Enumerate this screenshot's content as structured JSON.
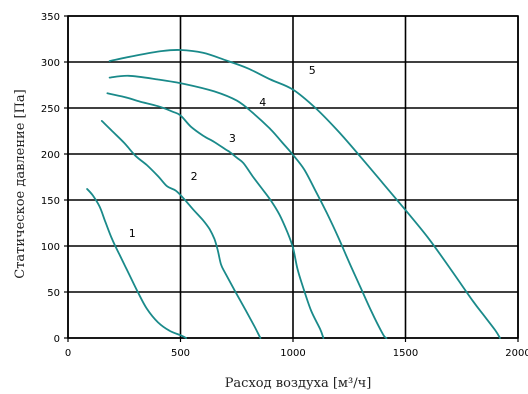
{
  "chart_data": {
    "type": "line",
    "title": "",
    "xlabel": "Расход воздуха [м³/ч]",
    "ylabel": "Статическое давление [Па]",
    "xlim": [
      0,
      2000
    ],
    "ylim": [
      0,
      350
    ],
    "xticks": [
      0,
      500,
      1000,
      1500,
      2000
    ],
    "yticks": [
      0,
      50,
      100,
      150,
      200,
      250,
      300,
      350
    ],
    "grid": true,
    "line_color": "#1a8a8a",
    "grid_color": "#000000",
    "series": [
      {
        "name": "1",
        "label_at": [
          270,
          110
        ],
        "points": [
          [
            85,
            162
          ],
          [
            110,
            155
          ],
          [
            140,
            143
          ],
          [
            165,
            127
          ],
          [
            195,
            108
          ],
          [
            230,
            90
          ],
          [
            270,
            70
          ],
          [
            310,
            50
          ],
          [
            350,
            32
          ],
          [
            400,
            17
          ],
          [
            450,
            8
          ],
          [
            500,
            3
          ],
          [
            525,
            0
          ]
        ]
      },
      {
        "name": "2",
        "label_at": [
          545,
          172
        ],
        "points": [
          [
            150,
            236
          ],
          [
            200,
            224
          ],
          [
            250,
            212
          ],
          [
            300,
            198
          ],
          [
            350,
            188
          ],
          [
            400,
            176
          ],
          [
            440,
            165
          ],
          [
            480,
            160
          ],
          [
            520,
            150
          ],
          [
            555,
            140
          ],
          [
            600,
            128
          ],
          [
            630,
            118
          ],
          [
            650,
            108
          ],
          [
            665,
            96
          ],
          [
            680,
            80
          ],
          [
            700,
            70
          ],
          [
            740,
            52
          ],
          [
            790,
            30
          ],
          [
            830,
            12
          ],
          [
            855,
            0
          ]
        ]
      },
      {
        "name": "3",
        "label_at": [
          715,
          213
        ],
        "points": [
          [
            175,
            266
          ],
          [
            250,
            262
          ],
          [
            320,
            257
          ],
          [
            400,
            252
          ],
          [
            465,
            246
          ],
          [
            500,
            242
          ],
          [
            545,
            230
          ],
          [
            600,
            220
          ],
          [
            650,
            213
          ],
          [
            700,
            205
          ],
          [
            720,
            202
          ],
          [
            750,
            196
          ],
          [
            780,
            190
          ],
          [
            820,
            176
          ],
          [
            860,
            163
          ],
          [
            900,
            150
          ],
          [
            940,
            134
          ],
          [
            975,
            115
          ],
          [
            1000,
            98
          ],
          [
            1020,
            75
          ],
          [
            1045,
            55
          ],
          [
            1080,
            30
          ],
          [
            1120,
            10
          ],
          [
            1135,
            0
          ]
        ]
      },
      {
        "name": "4",
        "label_at": [
          850,
          252
        ],
        "points": [
          [
            185,
            283
          ],
          [
            270,
            285
          ],
          [
            400,
            281
          ],
          [
            520,
            276
          ],
          [
            650,
            268
          ],
          [
            750,
            258
          ],
          [
            820,
            245
          ],
          [
            900,
            227
          ],
          [
            950,
            213
          ],
          [
            1000,
            199
          ],
          [
            1050,
            183
          ],
          [
            1100,
            160
          ],
          [
            1150,
            136
          ],
          [
            1200,
            110
          ],
          [
            1250,
            82
          ],
          [
            1300,
            55
          ],
          [
            1350,
            28
          ],
          [
            1400,
            4
          ],
          [
            1415,
            0
          ]
        ]
      },
      {
        "name": "5",
        "label_at": [
          1070,
          287
        ],
        "points": [
          [
            185,
            301
          ],
          [
            300,
            307
          ],
          [
            420,
            312
          ],
          [
            500,
            313
          ],
          [
            600,
            310
          ],
          [
            700,
            302
          ],
          [
            800,
            293
          ],
          [
            900,
            281
          ],
          [
            1000,
            270
          ],
          [
            1100,
            250
          ],
          [
            1200,
            225
          ],
          [
            1300,
            197
          ],
          [
            1400,
            168
          ],
          [
            1500,
            139
          ],
          [
            1600,
            109
          ],
          [
            1700,
            75
          ],
          [
            1800,
            40
          ],
          [
            1850,
            24
          ],
          [
            1900,
            8
          ],
          [
            1920,
            0
          ]
        ]
      }
    ]
  }
}
